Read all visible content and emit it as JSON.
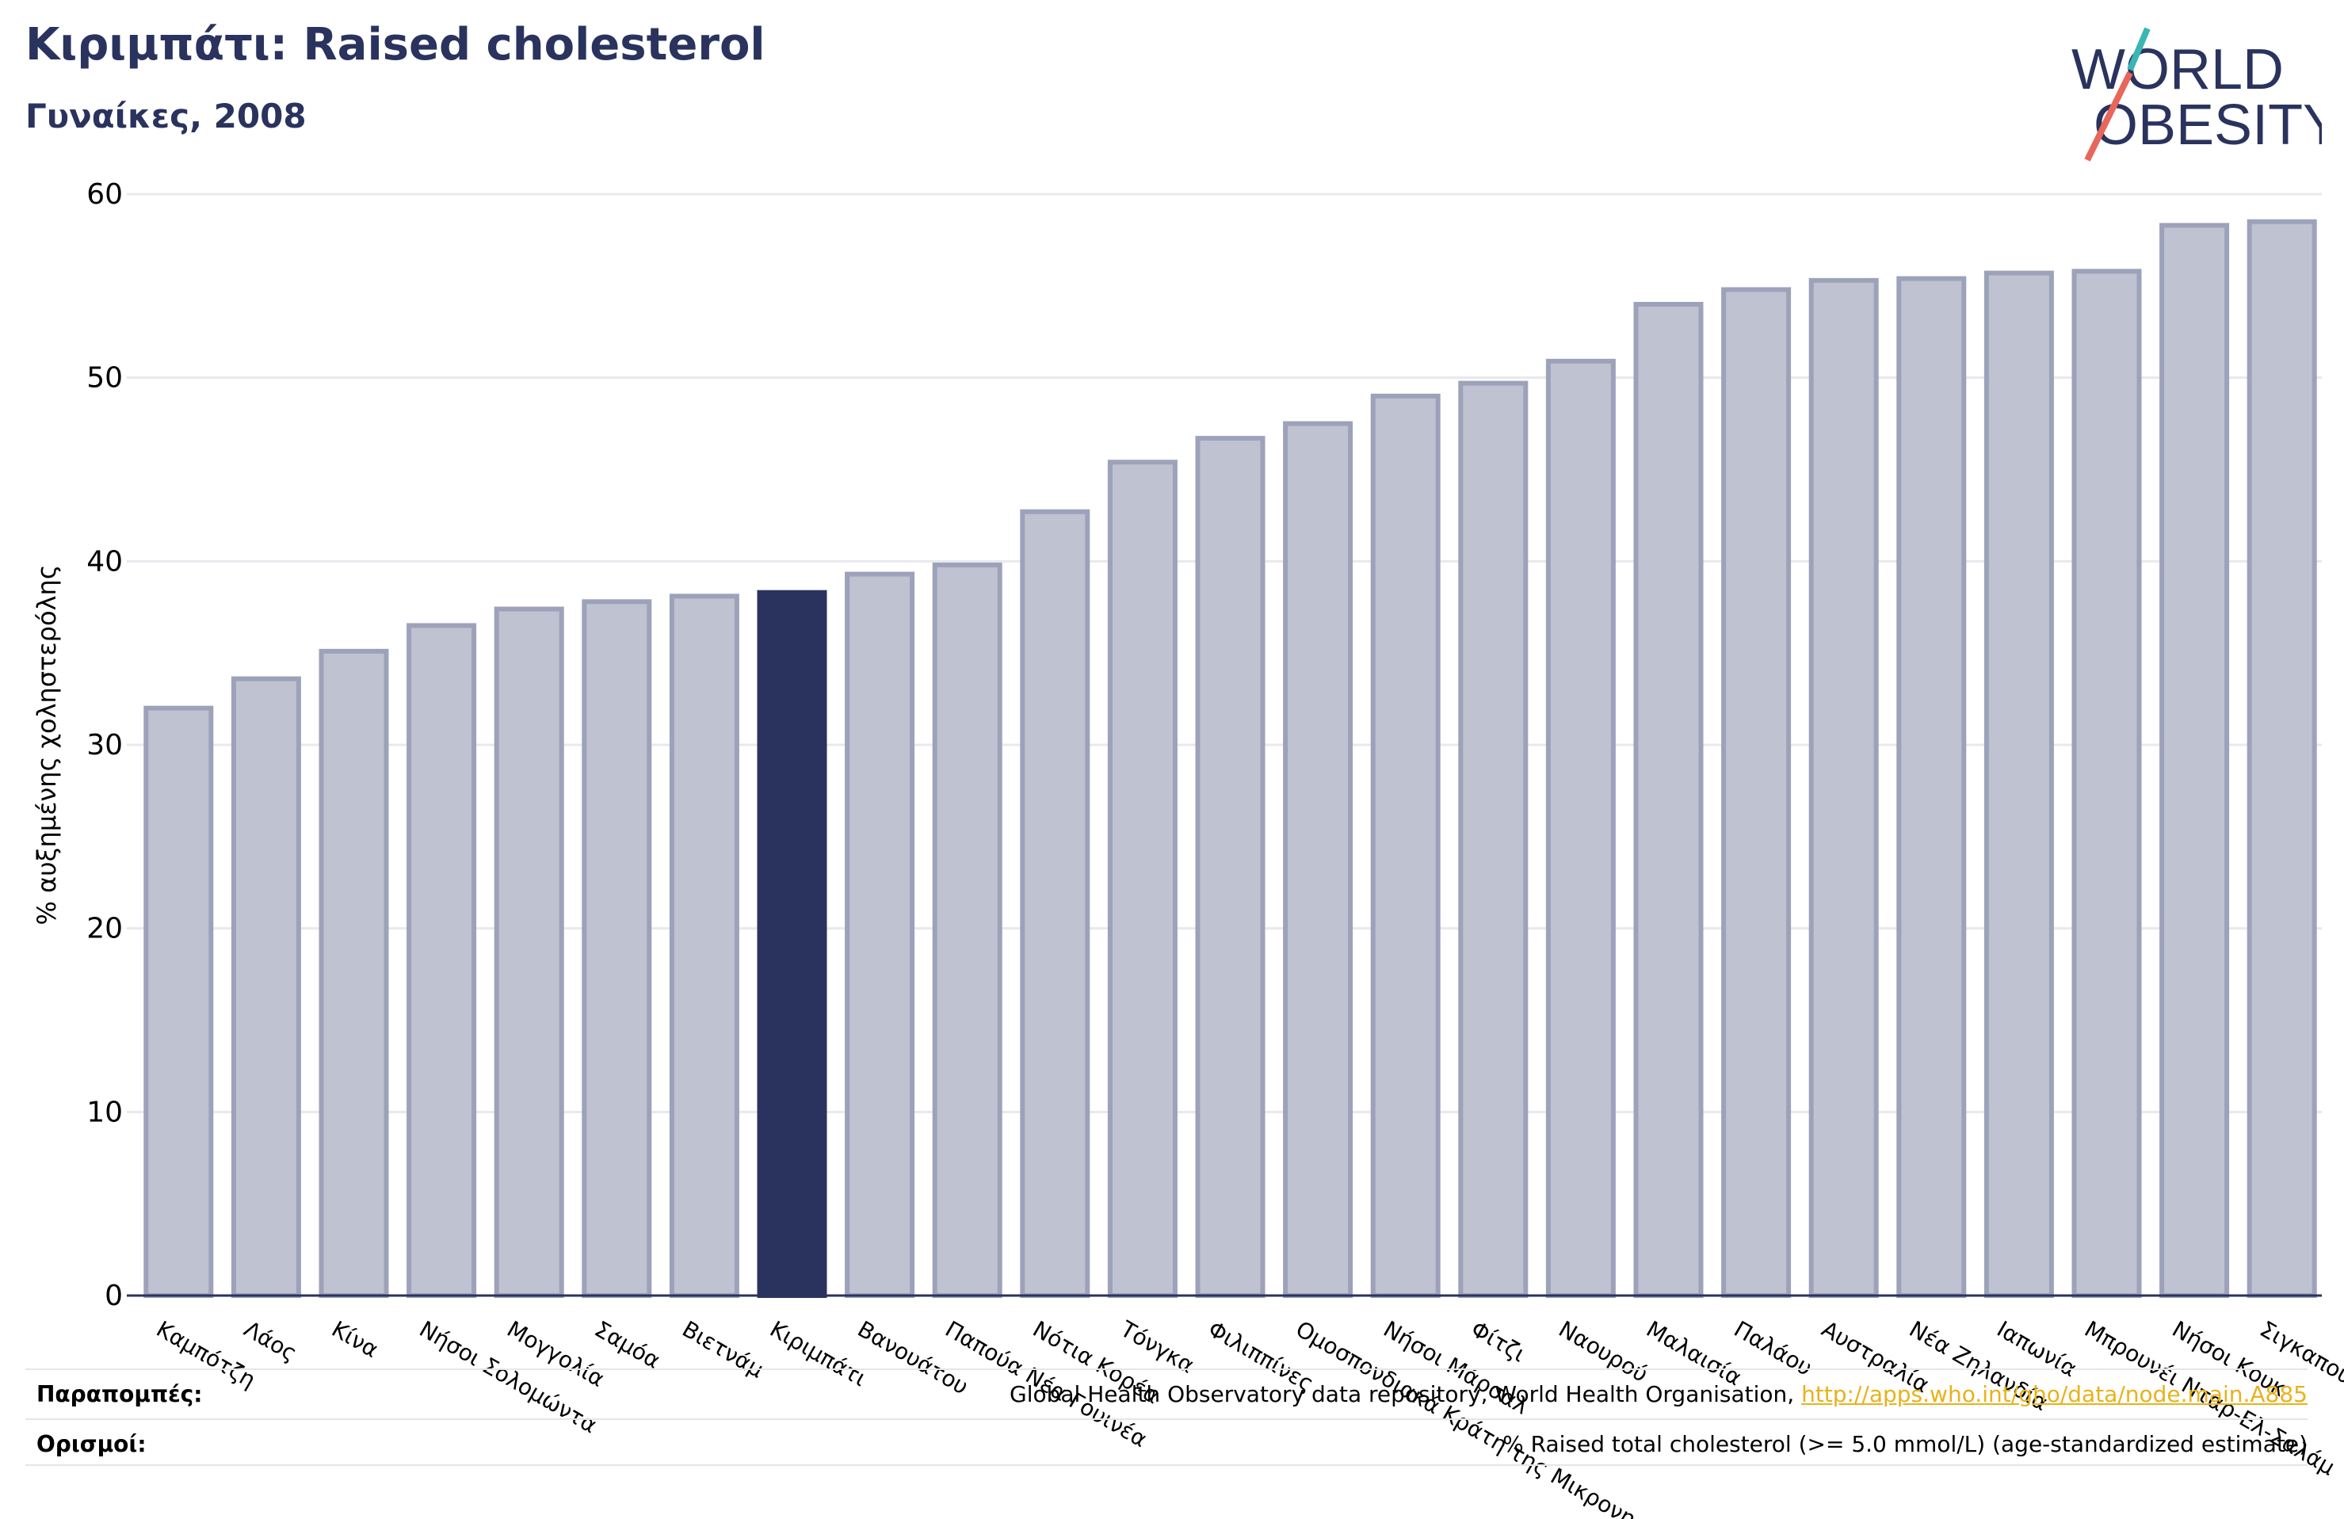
{
  "header": {
    "title": "Κιριμπάτι: Raised cholesterol",
    "subtitle": "Γυναίκες, 2008"
  },
  "logo": {
    "line1": "WORLD",
    "line2": "OBESITY",
    "icon": "world-obesity-logo"
  },
  "colors": {
    "bar": "#bfc2d0",
    "bar_edge": "#9da2ba",
    "highlight": "#2a335e",
    "link": "#e8b21c"
  },
  "chart_data": {
    "type": "bar",
    "title": "Κιριμπάτι: Raised cholesterol",
    "subtitle": "Γυναίκες, 2008",
    "ylabel": "% αυξημένης χοληστερόλης",
    "xlabel": "",
    "ylim": [
      0,
      60
    ],
    "yticks": [
      0,
      10,
      20,
      30,
      40,
      50,
      60
    ],
    "grid": true,
    "highlight": "Κιριμπάτι",
    "categories": [
      "Καμπότζη",
      "Λάος",
      "Κίνα",
      "Νήσοι Σολομώντα",
      "Μογγολία",
      "Σαμόα",
      "Βιετνάμ",
      "Κιριμπάτι",
      "Βανουάτου",
      "Παπούα Νέα Γουινέα",
      "Νότια Κορέα",
      "Τόνγκα",
      "Φιλιππίνες",
      "Ομοσπονδιακά Κράτη της Μικρονησίας",
      "Νήσοι Μάρσαλ",
      "Φίτζι",
      "Ναουρού",
      "Μαλαισία",
      "Παλάου",
      "Αυστραλία",
      "Νέα Ζηλανδία",
      "Ιαπωνία",
      "Μπρουνέι Νταρ-Ελ-Σαλάμ",
      "Νήσοι Κουκ",
      "Σιγκαπούρη"
    ],
    "values": [
      32.0,
      33.6,
      35.1,
      36.5,
      37.4,
      37.8,
      38.1,
      38.3,
      39.3,
      39.8,
      42.7,
      45.4,
      46.7,
      47.5,
      49.0,
      49.7,
      50.9,
      54.0,
      54.8,
      55.3,
      55.4,
      55.7,
      55.8,
      58.3,
      58.5
    ]
  },
  "footer": {
    "references_label": "Παραπομπές:",
    "references_text": "Global Health Observatory data repository, World Health Organisation, ",
    "references_link": "http://apps.who.int/gho/data/node.main.A885",
    "definitions_label": "Ορισμοί:",
    "definitions_text": "% Raised total cholesterol (>= 5.0 mmol/L) (age-standardized estimate)"
  }
}
